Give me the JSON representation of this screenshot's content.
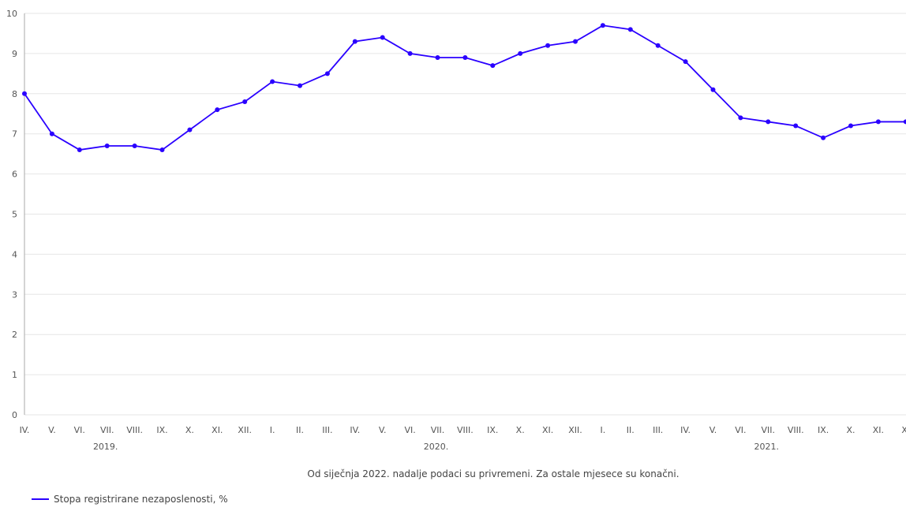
{
  "chart_data": {
    "type": "line",
    "categories": [
      "IV.",
      "V.",
      "VI.",
      "VII.",
      "VIII.",
      "IX.",
      "X.",
      "XI.",
      "XII.",
      "I.",
      "II.",
      "III.",
      "IV.",
      "V.",
      "VI.",
      "VII.",
      "VIII.",
      "IX.",
      "X.",
      "XI.",
      "XII.",
      "I.",
      "II.",
      "III.",
      "IV.",
      "V.",
      "VI.",
      "VII.",
      "VIII.",
      "IX.",
      "X.",
      "XI.",
      "XI"
    ],
    "year_labels": [
      {
        "label": "2019.",
        "category_index": 3
      },
      {
        "label": "2020.",
        "category_index": 15
      },
      {
        "label": "2021.",
        "category_index": 27
      }
    ],
    "series": [
      {
        "name": "Stopa registrirane nezaposlenosti, %",
        "color": "#2a00ff",
        "values": [
          8.0,
          7.0,
          6.6,
          6.7,
          6.7,
          6.6,
          7.1,
          7.6,
          7.8,
          8.3,
          8.2,
          8.5,
          9.3,
          9.4,
          9.0,
          8.9,
          8.9,
          8.7,
          9.0,
          9.2,
          9.3,
          9.7,
          9.6,
          9.2,
          8.8,
          8.1,
          7.4,
          7.3,
          7.2,
          6.9,
          7.2,
          7.3,
          7.3
        ]
      }
    ],
    "ylim": [
      0,
      10
    ],
    "yticks": [
      0,
      1,
      2,
      3,
      4,
      5,
      6,
      7,
      8,
      9,
      10
    ],
    "grid": true,
    "footnote": "Od siječnja 2022. nadalje podaci su privremeni. Za ostale mjesece su konačni.",
    "legend_position": "bottom-left"
  }
}
